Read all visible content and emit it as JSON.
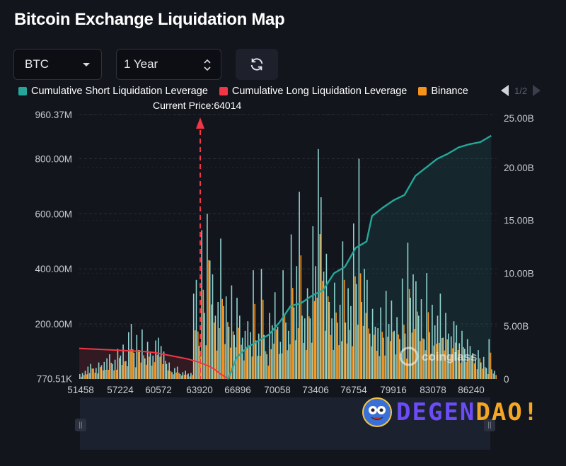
{
  "title": "Bitcoin Exchange Liquidation Map",
  "controls": {
    "symbol": "BTC",
    "range": "1 Year",
    "refresh_icon": "refresh-icon"
  },
  "legend": {
    "items": [
      {
        "label": "Cumulative Short Liquidation Leverage",
        "color": "#26a69a"
      },
      {
        "label": "Cumulative Long Liquidation Leverage",
        "color": "#f23645"
      },
      {
        "label": "Binance",
        "color": "#f7931a"
      }
    ],
    "pager": "1/2"
  },
  "current_price_label": "Current Price:64014",
  "watermark": "coinglass",
  "branding": {
    "text_a": "DEGEN",
    "text_b": "DAO!",
    "color_a": "#6b4cf6",
    "color_b": "#f5a623"
  },
  "chart_data": {
    "type": "bar",
    "current_price": 64014,
    "x_ticks": [
      "51458",
      "57224",
      "60572",
      "63920",
      "66896",
      "70058",
      "73406",
      "76754",
      "79916",
      "83078",
      "86240"
    ],
    "y_left_ticks": [
      "770.51K",
      "200.00M",
      "400.00M",
      "600.00M",
      "800.00M",
      "960.37M"
    ],
    "y_left_range": [
      770510,
      960370000
    ],
    "y_right_ticks": [
      "0",
      "5.00B",
      "10.00B",
      "15.00B",
      "20.00B",
      "25.00B"
    ],
    "y_right_range": [
      0,
      25000000000
    ],
    "cumulative_long": {
      "name": "Cumulative Long Liquidation Leverage",
      "x_index": [
        0,
        4,
        8,
        12,
        16,
        20,
        24,
        28,
        32,
        36,
        40,
        44,
        48,
        50,
        52,
        55
      ],
      "values": [
        2.9,
        2.85,
        2.8,
        2.75,
        2.7,
        2.65,
        2.6,
        2.5,
        2.3,
        2.1,
        1.9,
        1.6,
        1.2,
        0.9,
        0.5,
        0
      ]
    },
    "cumulative_short": {
      "name": "Cumulative Short Liquidation Leverage",
      "x_index": [
        55,
        58,
        62,
        66,
        70,
        74,
        78,
        82,
        86,
        90,
        94,
        98,
        102,
        106,
        108,
        112,
        116,
        120,
        124,
        128,
        132,
        136,
        140,
        144,
        148,
        152
      ],
      "values": [
        0,
        2.0,
        3.0,
        3.6,
        4.2,
        5.4,
        6.9,
        7.2,
        7.9,
        8.4,
        10.0,
        10.6,
        12.4,
        13.0,
        15.4,
        16.2,
        16.9,
        17.4,
        19.2,
        20.0,
        20.8,
        21.3,
        21.9,
        22.2,
        22.4,
        23.0
      ]
    },
    "bars_m": [
      18,
      22,
      30,
      45,
      55,
      38,
      40,
      60,
      50,
      62,
      75,
      90,
      55,
      70,
      110,
      85,
      125,
      65,
      170,
      200,
      95,
      160,
      105,
      180,
      75,
      135,
      95,
      85,
      140,
      150,
      120,
      100,
      55,
      60,
      25,
      40,
      45,
      18,
      25,
      30,
      20,
      22,
      310,
      360,
      120,
      540,
      240,
      600,
      430,
      380,
      230,
      280,
      510,
      265,
      300,
      190,
      340,
      160,
      295,
      230,
      150,
      175,
      210,
      170,
      395,
      140,
      165,
      400,
      160,
      90,
      240,
      195,
      315,
      190,
      135,
      395,
      205,
      175,
      525,
      260,
      410,
      680,
      230,
      220,
      330,
      220,
      555,
      410,
      835,
      660,
      390,
      455,
      280,
      220,
      350,
      205,
      270,
      500,
      205,
      330,
      265,
      565,
      345,
      800,
      280,
      400,
      360,
      165,
      255,
      190,
      185,
      260,
      150,
      320,
      200,
      285,
      175,
      225,
      145,
      365,
      165,
      495,
      295,
      380,
      355,
      230,
      290,
      145,
      385,
      170,
      270,
      195,
      230,
      310,
      150,
      240,
      165,
      155,
      210,
      195,
      130,
      175,
      110,
      145,
      120,
      95,
      70,
      105,
      60,
      80,
      40,
      145,
      35,
      30
    ]
  }
}
